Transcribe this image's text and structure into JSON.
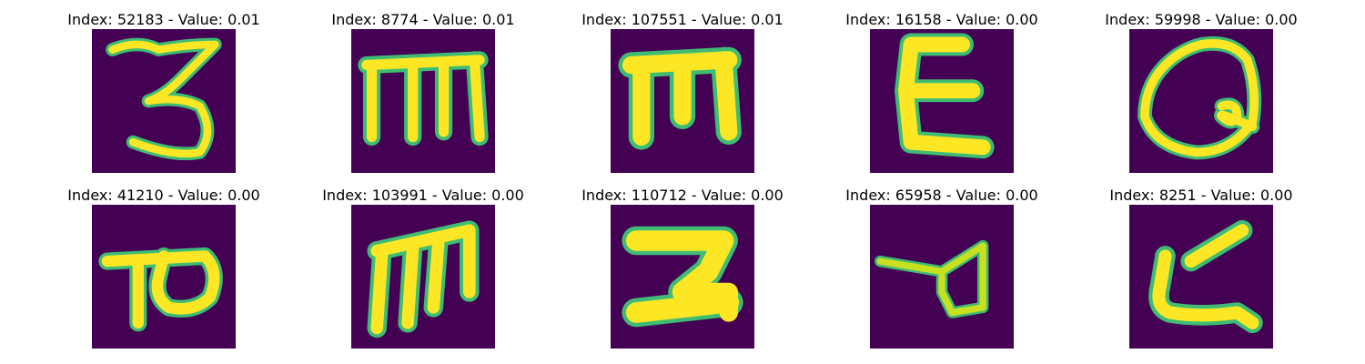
{
  "panels": [
    {
      "title": "Index: 52183 - Value: 0.01",
      "glyph": "digit-3"
    },
    {
      "title": "Index: 8774 - Value: 0.01",
      "glyph": "m-shape"
    },
    {
      "title": "Index: 107551 - Value: 0.01",
      "glyph": "m-shape-thick"
    },
    {
      "title": "Index: 16158 - Value: 0.00",
      "glyph": "e-shape"
    },
    {
      "title": "Index: 59998 - Value: 0.00",
      "glyph": "q-shape"
    },
    {
      "title": "Index: 41210 - Value: 0.00",
      "glyph": "p-shape"
    },
    {
      "title": "Index: 103991 - Value: 0.00",
      "glyph": "m-slanted"
    },
    {
      "title": "Index: 110712 - Value: 0.00",
      "glyph": "z-shape"
    },
    {
      "title": "Index: 65958 - Value: 0.00",
      "glyph": "loop-shape"
    },
    {
      "title": "Index: 8251 - Value: 0.00",
      "glyph": "l-shape"
    }
  ],
  "colors": {
    "background": "#440154",
    "stroke_bright": "#fde725",
    "stroke_edge": "#3fbc73"
  }
}
